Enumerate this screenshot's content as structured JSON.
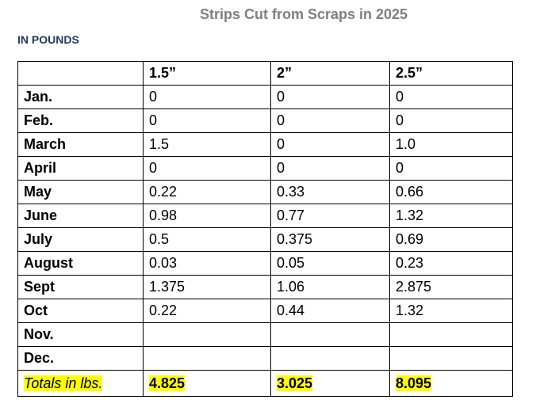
{
  "title": "Strips Cut from Scraps in 2025",
  "subtitle": "IN POUNDS",
  "table": {
    "header": [
      "1.5”",
      "2”",
      "2.5”"
    ],
    "rows": [
      [
        "Jan.",
        "0",
        "0",
        "0"
      ],
      [
        "Feb.",
        "0",
        "0",
        "0"
      ],
      [
        "March",
        "1.5",
        "0",
        "1.0"
      ],
      [
        "April",
        "0",
        "0",
        "0"
      ],
      [
        "May",
        "0.22",
        "0.33",
        "0.66"
      ],
      [
        "June",
        "0.98",
        "0.77",
        "1.32"
      ],
      [
        "July",
        "0.5",
        "0.375",
        "0.69"
      ],
      [
        "August",
        "0.03",
        "0.05",
        "0.23"
      ],
      [
        "Sept",
        "1.375",
        "1.06",
        "2.875"
      ],
      [
        "Oct",
        "0.22",
        "0.44",
        "1.32"
      ],
      [
        "Nov."
      ],
      [
        "Dec."
      ]
    ],
    "totals": [
      "Totals in lbs.",
      "4.825",
      "3.025",
      "8.095"
    ]
  }
}
